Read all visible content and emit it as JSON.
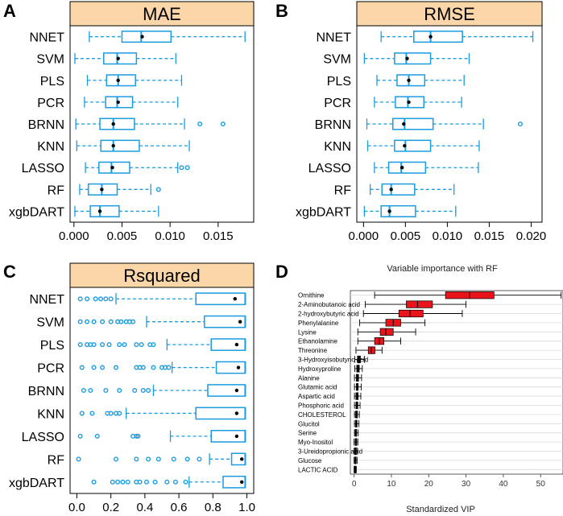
{
  "colors": {
    "box": "#1b9be0",
    "strip": "#fbd6a9",
    "vipbox": "#e8131b",
    "grid": "#d9d9d9"
  },
  "chart_data": [
    {
      "type": "boxplot",
      "panel": "A",
      "title": "MAE",
      "categories": [
        "NNET",
        "SVM",
        "PLS",
        "PCR",
        "BRNN",
        "KNN",
        "LASSO",
        "RF",
        "xgbDART"
      ],
      "xlim": [
        -0.0004,
        0.0187
      ],
      "ticks": [
        0.0,
        0.005,
        0.01,
        0.015
      ],
      "tick_labels": [
        "0.000",
        "0.005",
        "0.010",
        "0.015"
      ],
      "boxes": [
        {
          "min": 0.0016,
          "q1": 0.005,
          "median": 0.007,
          "q3": 0.0101,
          "max": 0.0178,
          "mean": 0.0071,
          "outliers": []
        },
        {
          "min": 0.0001,
          "q1": 0.0031,
          "median": 0.0045,
          "q3": 0.0065,
          "max": 0.0106,
          "mean": 0.0046,
          "outliers": []
        },
        {
          "min": 0.0014,
          "q1": 0.0034,
          "median": 0.0046,
          "q3": 0.0064,
          "max": 0.0112,
          "mean": 0.0046,
          "outliers": []
        },
        {
          "min": 0.0011,
          "q1": 0.0033,
          "median": 0.0045,
          "q3": 0.0061,
          "max": 0.0108,
          "mean": 0.0046,
          "outliers": []
        },
        {
          "min": 0.0002,
          "q1": 0.0027,
          "median": 0.0041,
          "q3": 0.0063,
          "max": 0.0115,
          "mean": 0.0041,
          "outliers": [
            0.0131,
            0.0155
          ]
        },
        {
          "min": 0.0003,
          "q1": 0.0028,
          "median": 0.0041,
          "q3": 0.0068,
          "max": 0.012,
          "mean": 0.0041,
          "outliers": []
        },
        {
          "min": 0.0012,
          "q1": 0.0026,
          "median": 0.0039,
          "q3": 0.0058,
          "max": 0.0108,
          "mean": 0.004,
          "outliers": [
            0.0112,
            0.0118
          ]
        },
        {
          "min": 0.0006,
          "q1": 0.0015,
          "median": 0.0029,
          "q3": 0.0045,
          "max": 0.008,
          "mean": 0.0029,
          "outliers": [
            0.0088
          ]
        },
        {
          "min": 0.0001,
          "q1": 0.0017,
          "median": 0.0027,
          "q3": 0.0047,
          "max": 0.0088,
          "mean": 0.0027,
          "outliers": []
        }
      ]
    },
    {
      "type": "boxplot",
      "panel": "B",
      "title": "RMSE",
      "categories": [
        "NNET",
        "SVM",
        "PLS",
        "PCR",
        "BRNN",
        "KNN",
        "LASSO",
        "RF",
        "xgbDART"
      ],
      "xlim": [
        -0.0008,
        0.0213
      ],
      "ticks": [
        0.0,
        0.005,
        0.01,
        0.015,
        0.02
      ],
      "tick_labels": [
        "0.000",
        "0.005",
        "0.010",
        "0.015",
        "0.020"
      ],
      "boxes": [
        {
          "min": 0.0021,
          "q1": 0.006,
          "median": 0.008,
          "q3": 0.0118,
          "max": 0.0202,
          "mean": 0.008,
          "outliers": []
        },
        {
          "min": 0.0001,
          "q1": 0.0037,
          "median": 0.0051,
          "q3": 0.008,
          "max": 0.0126,
          "mean": 0.0052,
          "outliers": []
        },
        {
          "min": 0.0016,
          "q1": 0.004,
          "median": 0.0054,
          "q3": 0.0073,
          "max": 0.012,
          "mean": 0.0054,
          "outliers": []
        },
        {
          "min": 0.0013,
          "q1": 0.0038,
          "median": 0.0053,
          "q3": 0.0072,
          "max": 0.0117,
          "mean": 0.0054,
          "outliers": []
        },
        {
          "min": 0.0004,
          "q1": 0.0035,
          "median": 0.0049,
          "q3": 0.0083,
          "max": 0.0143,
          "mean": 0.0048,
          "outliers": [
            0.0187
          ]
        },
        {
          "min": 0.0005,
          "q1": 0.0037,
          "median": 0.005,
          "q3": 0.008,
          "max": 0.0138,
          "mean": 0.0049,
          "outliers": []
        },
        {
          "min": 0.0013,
          "q1": 0.003,
          "median": 0.0045,
          "q3": 0.0074,
          "max": 0.0137,
          "mean": 0.0046,
          "outliers": []
        },
        {
          "min": 0.0008,
          "q1": 0.0022,
          "median": 0.0033,
          "q3": 0.0061,
          "max": 0.0108,
          "mean": 0.0033,
          "outliers": []
        },
        {
          "min": 0.0001,
          "q1": 0.0021,
          "median": 0.0031,
          "q3": 0.0062,
          "max": 0.011,
          "mean": 0.0031,
          "outliers": []
        }
      ]
    },
    {
      "type": "boxplot",
      "panel": "C",
      "title": "Rsquared",
      "categories": [
        "NNET",
        "SVM",
        "PLS",
        "PCR",
        "BRNN",
        "KNN",
        "LASSO",
        "RF",
        "xgbDART"
      ],
      "xlim": [
        -0.04,
        1.04
      ],
      "ticks": [
        0.0,
        0.2,
        0.4,
        0.6,
        0.8,
        1.0
      ],
      "tick_labels": [
        "0.0",
        "0.2",
        "0.4",
        "0.6",
        "0.8",
        "1.0"
      ],
      "boxes": [
        {
          "min": 0.23,
          "q1": 0.7,
          "median": 0.99,
          "q3": 0.99,
          "max": 0.99,
          "mean": 0.93,
          "outliers": [
            0.02,
            0.06,
            0.11,
            0.14,
            0.17,
            0.2
          ]
        },
        {
          "min": 0.41,
          "q1": 0.75,
          "median": 0.99,
          "q3": 0.99,
          "max": 0.99,
          "mean": 0.96,
          "outliers": [
            0.02,
            0.06,
            0.1,
            0.15,
            0.2,
            0.24,
            0.26,
            0.29,
            0.31,
            0.33
          ]
        },
        {
          "min": 0.53,
          "q1": 0.79,
          "median": 0.99,
          "q3": 0.99,
          "max": 0.99,
          "mean": 0.94,
          "outliers": [
            0.02,
            0.06,
            0.08,
            0.1,
            0.15,
            0.19,
            0.25,
            0.28,
            0.35,
            0.38,
            0.43,
            0.45
          ]
        },
        {
          "min": 0.56,
          "q1": 0.82,
          "median": 0.99,
          "q3": 0.99,
          "max": 0.99,
          "mean": 0.95,
          "outliers": [
            0.03,
            0.1,
            0.15,
            0.23,
            0.35,
            0.37,
            0.39,
            0.45,
            0.5,
            0.52,
            0.54
          ]
        },
        {
          "min": 0.45,
          "q1": 0.77,
          "median": 0.99,
          "q3": 0.99,
          "max": 0.99,
          "mean": 0.94,
          "outliers": [
            0.04,
            0.08,
            0.17,
            0.25,
            0.34,
            0.39,
            0.42
          ]
        },
        {
          "min": 0.29,
          "q1": 0.7,
          "median": 0.99,
          "q3": 0.99,
          "max": 0.99,
          "mean": 0.94,
          "outliers": [
            0.03,
            0.09,
            0.18,
            0.2,
            0.23,
            0.25
          ]
        },
        {
          "min": 0.55,
          "q1": 0.79,
          "median": 0.99,
          "q3": 0.99,
          "max": 0.99,
          "mean": 0.94,
          "outliers": [
            0.02,
            0.12,
            0.33,
            0.35,
            0.36
          ]
        },
        {
          "min": 0.78,
          "q1": 0.91,
          "median": 0.99,
          "q3": 0.99,
          "max": 0.99,
          "mean": 0.97,
          "outliers": [
            0.01,
            0.23,
            0.35,
            0.42,
            0.48,
            0.57,
            0.65,
            0.72
          ]
        },
        {
          "min": 0.66,
          "q1": 0.86,
          "median": 0.99,
          "q3": 0.99,
          "max": 0.99,
          "mean": 0.97,
          "outliers": [
            0.1,
            0.21,
            0.24,
            0.27,
            0.3,
            0.35,
            0.37,
            0.41,
            0.46,
            0.53,
            0.58,
            0.64
          ]
        }
      ]
    },
    {
      "type": "boxplot",
      "panel": "D",
      "title": "Variable importance with RF",
      "xlabel": "Standardized VIP",
      "xlim": [
        -1,
        56
      ],
      "ticks": [
        0,
        10,
        20,
        30,
        40,
        50
      ],
      "tick_labels": [
        "0",
        "10",
        "20",
        "30",
        "40",
        "50"
      ],
      "categories": [
        "Ornithine",
        "2-Aminobutanoic acid",
        "2-hydroxybutyric acid",
        "Phenylalanine",
        "Lysine",
        "Ethanolamine",
        "Threonine",
        "3-Hydroxyisobutyric acid",
        "Hydroxyproline",
        "Alanine",
        "Glutamic acid",
        "Aspartic acid",
        "Phosphoric acid",
        "CHOLESTEROL",
        "Glucitol",
        "Serine",
        "Myo-Inositol",
        "3-Ureidopropionic acid",
        "Glucose",
        "LACTIC ACID"
      ],
      "boxes": [
        {
          "min": 5.5,
          "q1": 24.5,
          "median": 31.0,
          "q3": 37.5,
          "max": 55.5
        },
        {
          "min": 3.0,
          "q1": 14.0,
          "median": 17.0,
          "q3": 21.0,
          "max": 30.0
        },
        {
          "min": 2.5,
          "q1": 12.0,
          "median": 15.0,
          "q3": 18.5,
          "max": 29.0
        },
        {
          "min": 1.5,
          "q1": 8.5,
          "median": 10.5,
          "q3": 12.5,
          "max": 19.0
        },
        {
          "min": 1.0,
          "q1": 7.0,
          "median": 8.5,
          "q3": 10.5,
          "max": 16.5
        },
        {
          "min": 1.0,
          "q1": 5.5,
          "median": 6.8,
          "q3": 8.0,
          "max": 12.5
        },
        {
          "min": 0.5,
          "q1": 3.8,
          "median": 4.6,
          "q3": 5.6,
          "max": 7.5
        },
        {
          "min": 0.2,
          "q1": 0.9,
          "median": 1.3,
          "q3": 1.7,
          "max": 2.8
        },
        {
          "min": 0.2,
          "q1": 0.7,
          "median": 1.0,
          "q3": 1.4,
          "max": 2.2
        },
        {
          "min": 0.1,
          "q1": 0.6,
          "median": 0.9,
          "q3": 1.2,
          "max": 2.0
        },
        {
          "min": 0.1,
          "q1": 0.6,
          "median": 0.8,
          "q3": 1.1,
          "max": 1.9
        },
        {
          "min": 0.1,
          "q1": 0.5,
          "median": 0.8,
          "q3": 1.1,
          "max": 1.8
        },
        {
          "min": 0.1,
          "q1": 0.5,
          "median": 0.7,
          "q3": 1.0,
          "max": 1.6
        },
        {
          "min": 0.1,
          "q1": 0.4,
          "median": 0.6,
          "q3": 0.9,
          "max": 1.4
        },
        {
          "min": 0.1,
          "q1": 0.4,
          "median": 0.6,
          "q3": 0.8,
          "max": 1.3
        },
        {
          "min": 0.1,
          "q1": 0.3,
          "median": 0.5,
          "q3": 0.7,
          "max": 1.1
        },
        {
          "min": 0.0,
          "q1": 0.3,
          "median": 0.5,
          "q3": 0.7,
          "max": 1.0
        },
        {
          "min": 0.0,
          "q1": 0.2,
          "median": 0.4,
          "q3": 0.6,
          "max": 0.9
        },
        {
          "min": 0.0,
          "q1": 0.2,
          "median": 0.3,
          "q3": 0.5,
          "max": 0.8
        },
        {
          "min": 0.0,
          "q1": 0.1,
          "median": 0.2,
          "q3": 0.3,
          "max": 0.6
        }
      ]
    }
  ]
}
